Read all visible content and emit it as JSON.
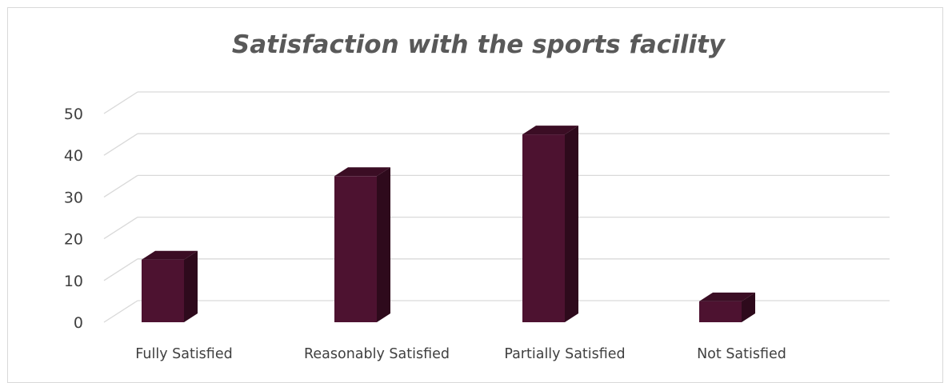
{
  "chart_data": {
    "type": "bar",
    "title": "Satisfaction with the sports facility",
    "categories": [
      "Fully Satisfied",
      "Reasonably Satisfied",
      "Partially Satisfied",
      "Not Satisfied"
    ],
    "values": [
      15,
      35,
      45,
      5
    ],
    "ylim": [
      0,
      50
    ],
    "yticks": [
      0,
      10,
      20,
      30,
      40,
      50
    ],
    "xlabel": "",
    "ylabel": "",
    "grid": true,
    "legend": "none",
    "style": "3d-column",
    "colors": {
      "bar_front": "#4d1230",
      "bar_top": "#3b0d24",
      "bar_side": "#2e0a1c",
      "grid": "#d9d9d9",
      "text": "#404040",
      "title": "#595959"
    }
  }
}
